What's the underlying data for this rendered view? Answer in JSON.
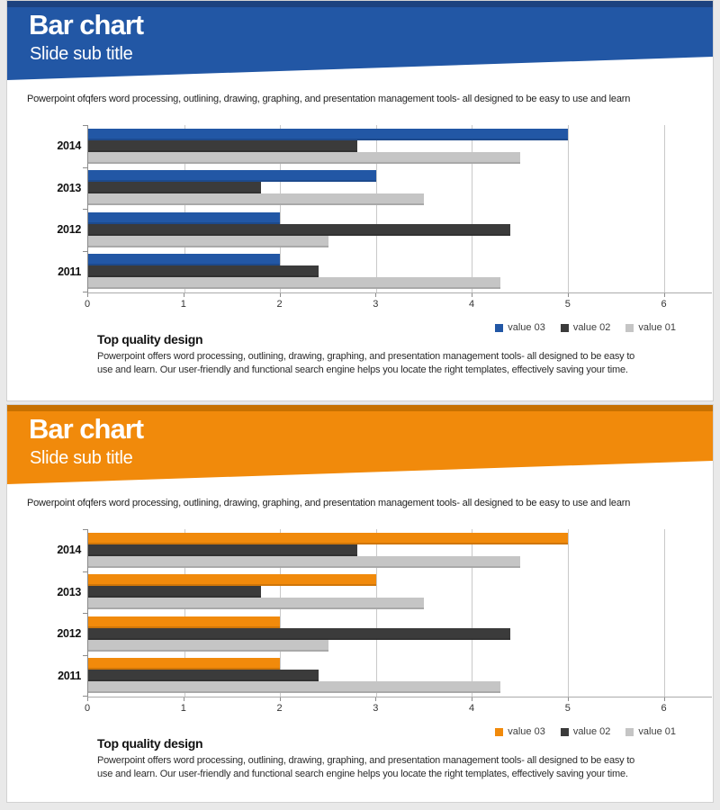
{
  "page": {
    "background": "#E9E9E9"
  },
  "slides": [
    {
      "theme": "blue",
      "accent": "#2257A5",
      "accent_dark": "#1B3E78",
      "title": "Bar chart",
      "subtitle": "Slide sub title",
      "intro": "Powerpoint ofqfers word processing, outlining, drawing, graphing, and presentation management tools- all designed to be easy to use and learn",
      "section_heading": "Top quality design",
      "section_body": "Powerpoint offers word processing, outlining, drawing, graphing, and presentation management tools- all designed to be easy to use and learn. Our user-friendly and functional search engine helps you locate the right templates, effectively saving your time."
    },
    {
      "theme": "orange",
      "accent": "#F18A0B",
      "accent_dark": "#BF6C00",
      "title": "Bar chart",
      "subtitle": "Slide sub title",
      "intro": "Powerpoint ofqfers word processing, outlining, drawing, graphing, and presentation management tools- all designed to be easy to use and learn",
      "section_heading": "Top quality design",
      "section_body": "Powerpoint offers word processing, outlining, drawing, graphing, and presentation management tools- all designed to be easy to use and learn. Our user-friendly and functional search engine helps you locate the right templates, effectively saving your time."
    }
  ],
  "chart_data": [
    {
      "type": "bar",
      "orientation": "horizontal",
      "title": "",
      "xlabel": "",
      "ylabel": "",
      "categories": [
        "2014",
        "2013",
        "2012",
        "2011"
      ],
      "series": [
        {
          "name": "value 03",
          "color": "#2257A5",
          "values": [
            5.0,
            3.0,
            2.0,
            2.0
          ]
        },
        {
          "name": "value 02",
          "color": "#3B3B3B",
          "values": [
            2.8,
            1.8,
            4.4,
            2.4
          ]
        },
        {
          "name": "value 01",
          "color": "#C5C5C5",
          "values": [
            4.5,
            3.5,
            2.5,
            4.3
          ]
        }
      ],
      "xlim": [
        0,
        6.5
      ],
      "xticks": [
        0,
        1,
        2,
        3,
        4,
        5,
        6
      ],
      "grid": true,
      "legend_position": "bottom-right"
    },
    {
      "type": "bar",
      "orientation": "horizontal",
      "title": "",
      "xlabel": "",
      "ylabel": "",
      "categories": [
        "2014",
        "2013",
        "2012",
        "2011"
      ],
      "series": [
        {
          "name": "value 03",
          "color": "#F18A0B",
          "values": [
            5.0,
            3.0,
            2.0,
            2.0
          ]
        },
        {
          "name": "value 02",
          "color": "#3B3B3B",
          "values": [
            2.8,
            1.8,
            4.4,
            2.4
          ]
        },
        {
          "name": "value 01",
          "color": "#C5C5C5",
          "values": [
            4.5,
            3.5,
            2.5,
            4.3
          ]
        }
      ],
      "xlim": [
        0,
        6.5
      ],
      "xticks": [
        0,
        1,
        2,
        3,
        4,
        5,
        6
      ],
      "grid": true,
      "legend_position": "bottom-right"
    }
  ]
}
